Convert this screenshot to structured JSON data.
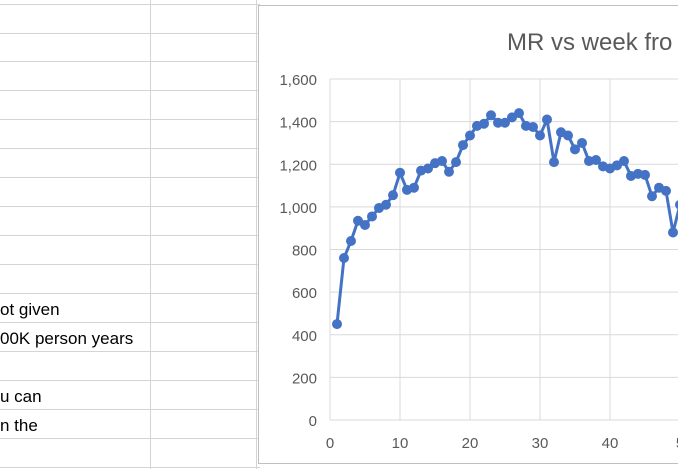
{
  "sheet": {
    "cells": [
      {
        "text": "ot given"
      },
      {
        "text": "00K person years"
      },
      {
        "text": "u can"
      },
      {
        "text": "n the"
      }
    ]
  },
  "chart": {
    "title": "MR vs week fro"
  },
  "chart_data": {
    "type": "line",
    "title": "MR vs week fro",
    "xlabel": "",
    "ylabel": "",
    "xlim": [
      0,
      50
    ],
    "ylim": [
      0,
      1600
    ],
    "x_ticks": [
      "0",
      "10",
      "20",
      "30",
      "40",
      "5"
    ],
    "y_ticks": [
      "0",
      "200",
      "400",
      "600",
      "800",
      "1,000",
      "1,200",
      "1,400",
      "1,600"
    ],
    "grid": true,
    "marker": "circle",
    "color": "#4472c4",
    "series": [
      {
        "name": "",
        "x": [
          1,
          2,
          3,
          4,
          5,
          6,
          7,
          8,
          9,
          10,
          11,
          12,
          13,
          14,
          15,
          16,
          17,
          18,
          19,
          20,
          21,
          22,
          23,
          24,
          25,
          26,
          27,
          28,
          29,
          30,
          31,
          32,
          33,
          34,
          35,
          36,
          37,
          38,
          39,
          40,
          41,
          42,
          43,
          44,
          45,
          46,
          47,
          48,
          49,
          50
        ],
        "y": [
          450,
          760,
          840,
          935,
          915,
          955,
          995,
          1010,
          1055,
          1160,
          1080,
          1090,
          1170,
          1180,
          1205,
          1215,
          1165,
          1210,
          1290,
          1335,
          1380,
          1390,
          1430,
          1395,
          1395,
          1420,
          1440,
          1380,
          1375,
          1335,
          1410,
          1210,
          1350,
          1335,
          1270,
          1300,
          1215,
          1220,
          1190,
          1180,
          1195,
          1215,
          1145,
          1155,
          1150,
          1050,
          1090,
          1075,
          880,
          1010
        ]
      }
    ]
  }
}
